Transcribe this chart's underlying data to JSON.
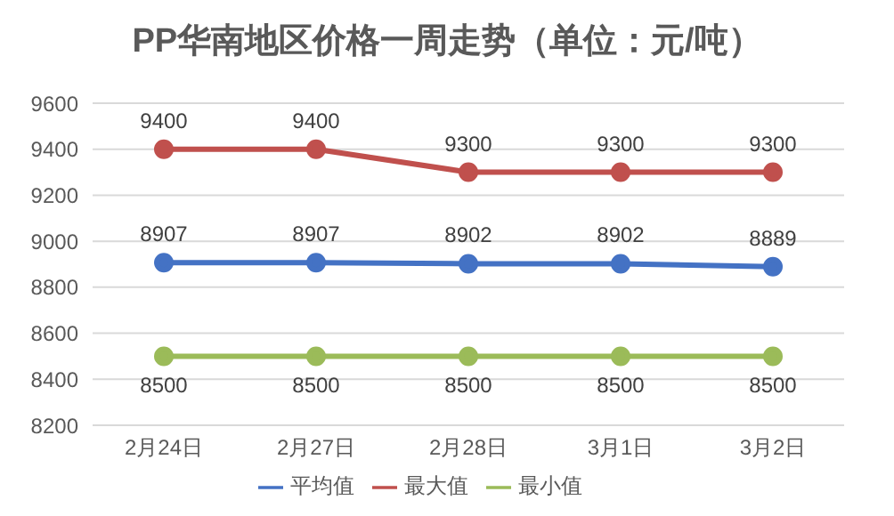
{
  "chart_data": {
    "type": "line",
    "title": "PP华南地区价格一周走势（单位：元/吨）",
    "categories": [
      "2月24日",
      "2月27日",
      "2月28日",
      "3月1日",
      "3月2日"
    ],
    "series": [
      {
        "name": "平均值",
        "color": "#4472c4",
        "values": [
          8907,
          8907,
          8902,
          8902,
          8889
        ]
      },
      {
        "name": "最大值",
        "color": "#c0504d",
        "values": [
          9400,
          9400,
          9300,
          9300,
          9300
        ]
      },
      {
        "name": "最小值",
        "color": "#9bbb59",
        "values": [
          8500,
          8500,
          8500,
          8500,
          8500
        ]
      }
    ],
    "ylim": [
      8200,
      9600
    ],
    "yticks": [
      8200,
      8400,
      8600,
      8800,
      9000,
      9200,
      9400,
      9600
    ],
    "grid": "y",
    "legend": "bottom",
    "marker": "circle",
    "data_labels": true
  }
}
